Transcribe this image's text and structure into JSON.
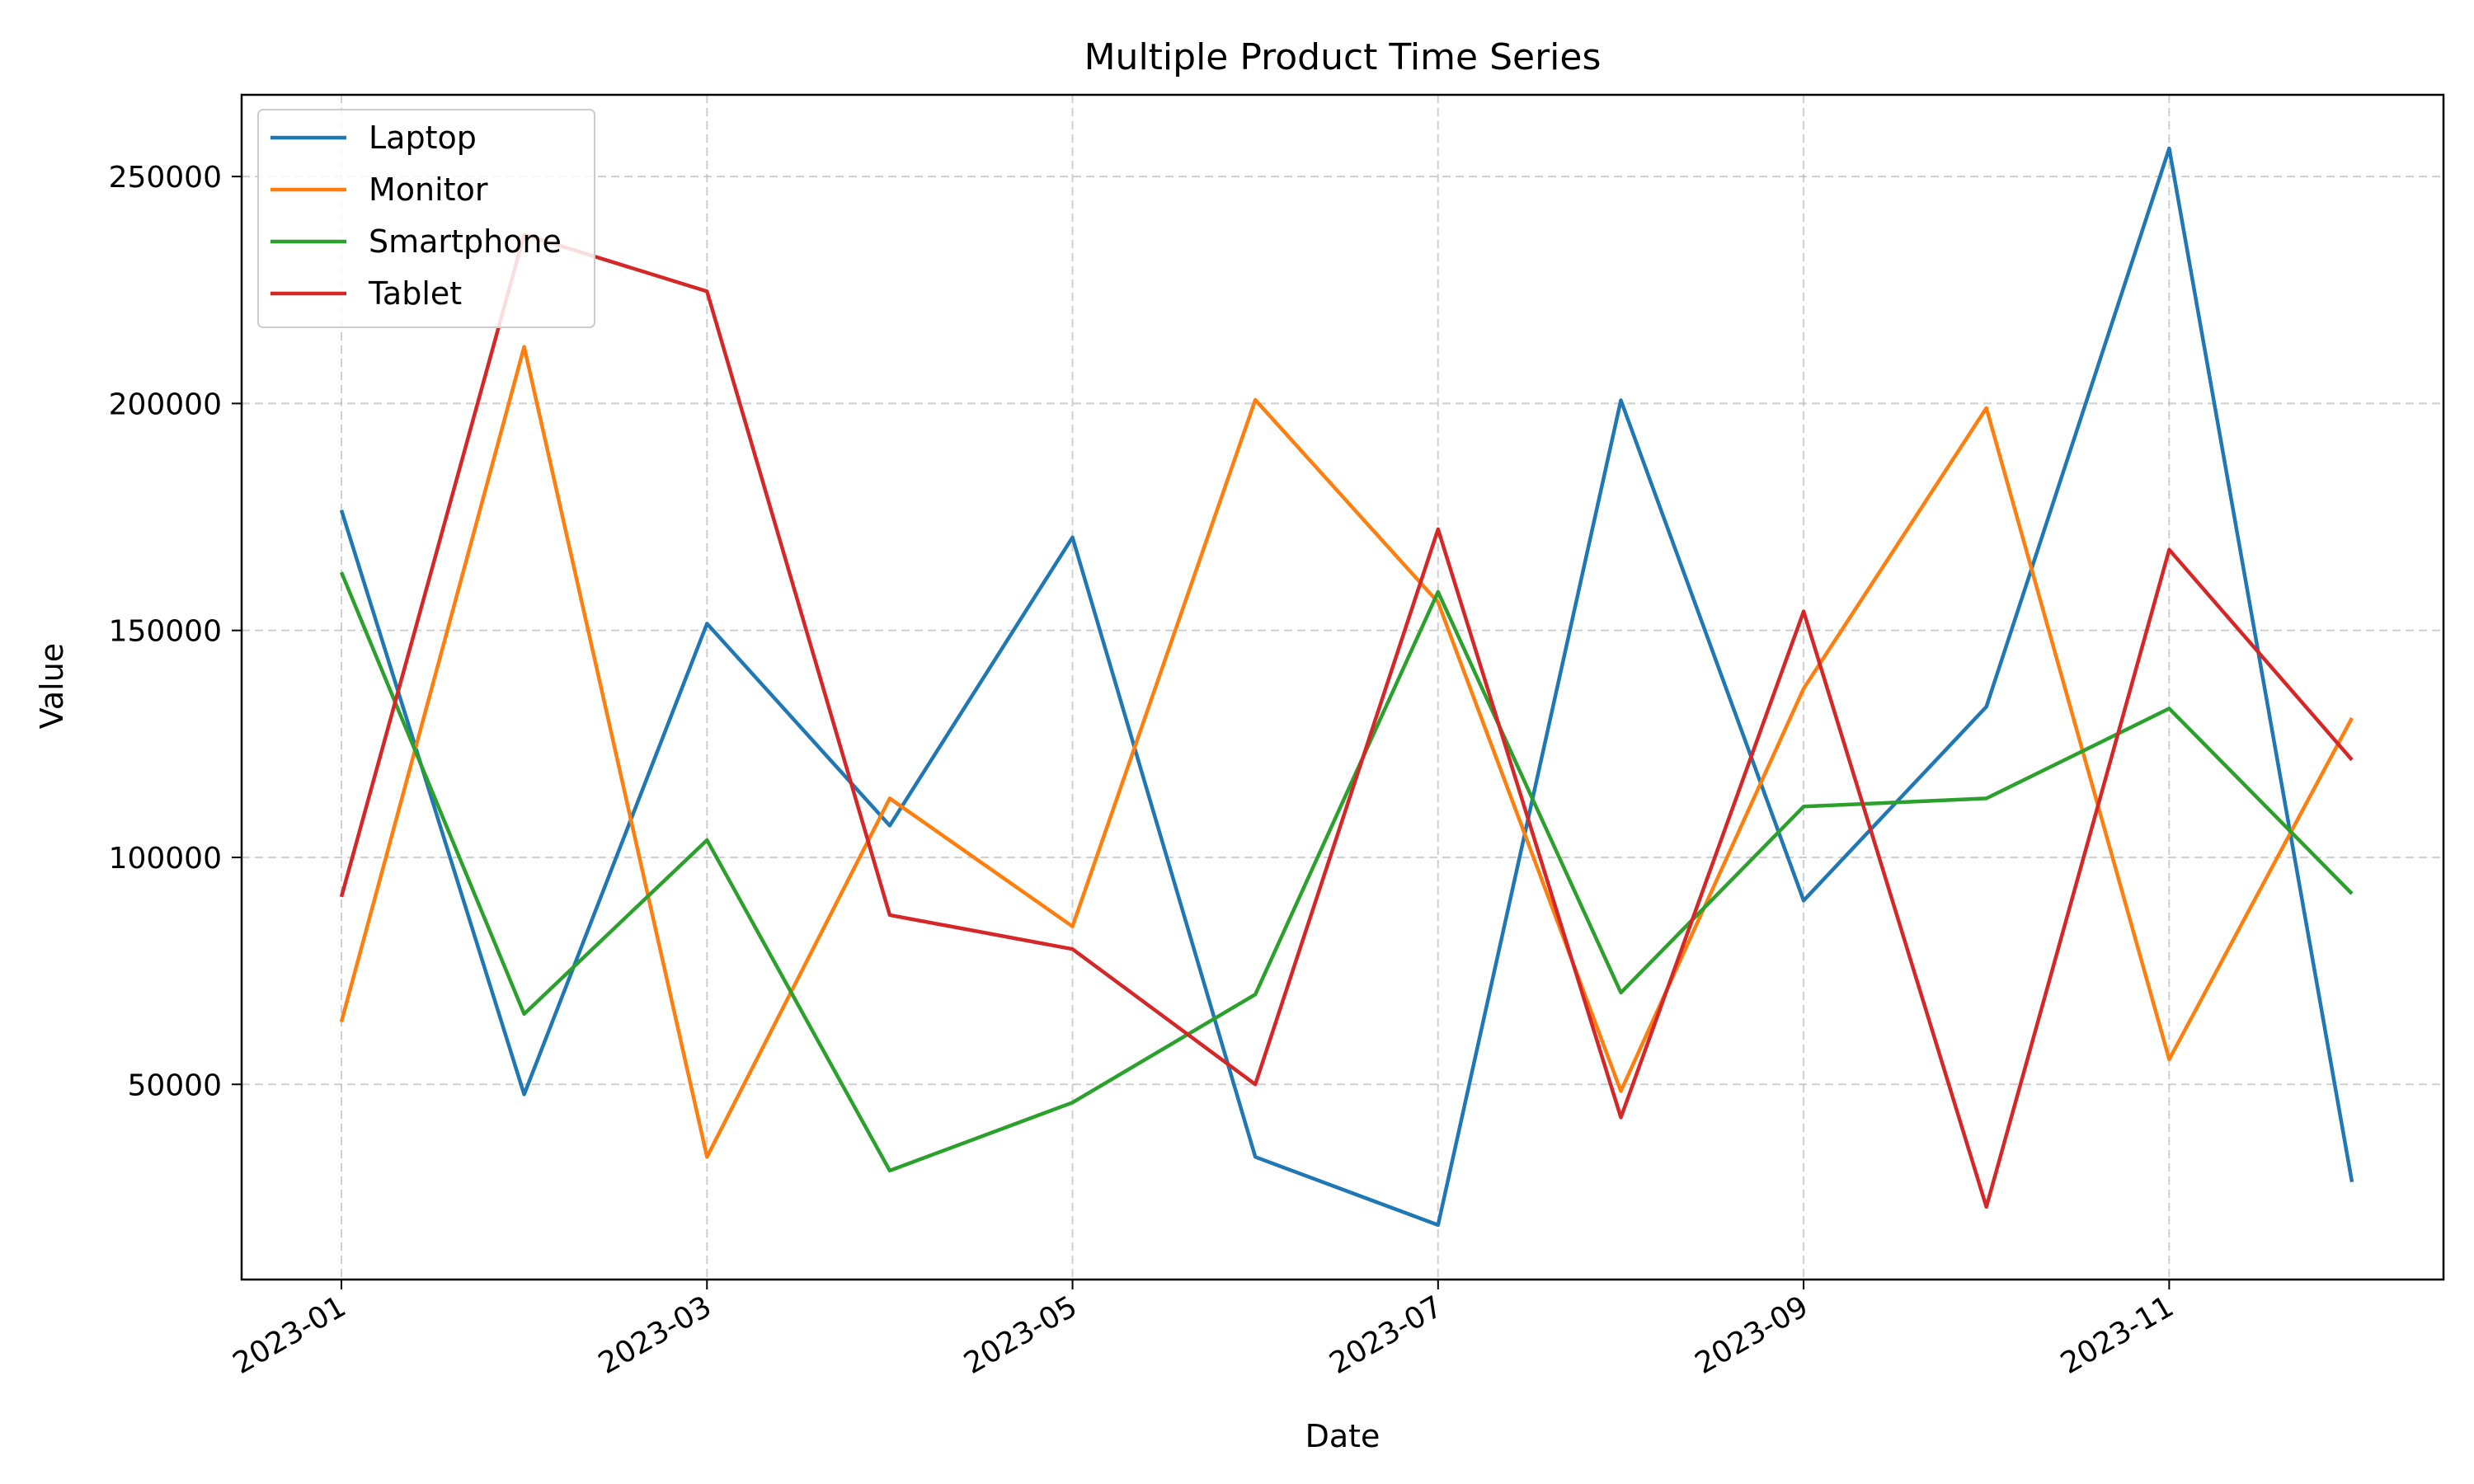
{
  "chart_data": {
    "type": "line",
    "title": "Multiple Product Time Series",
    "xlabel": "Date",
    "ylabel": "Value",
    "x": [
      "2023-01",
      "2023-02",
      "2023-03",
      "2023-04",
      "2023-05",
      "2023-06",
      "2023-07",
      "2023-08",
      "2023-09",
      "2023-10",
      "2023-11",
      "2023-12"
    ],
    "x_tick_labels": [
      "2023-01",
      "2023-03",
      "2023-05",
      "2023-07",
      "2023-09",
      "2023-11"
    ],
    "y_ticks": [
      50000,
      100000,
      150000,
      200000,
      250000
    ],
    "ylim": [
      7000,
      268000
    ],
    "grid": true,
    "legend_position": "top-left",
    "series": [
      {
        "name": "Laptop",
        "color": "#1f77b4",
        "values": [
          176500,
          47800,
          151500,
          107000,
          170500,
          34000,
          19000,
          200700,
          90500,
          133200,
          256200,
          28500
        ]
      },
      {
        "name": "Monitor",
        "color": "#ff7f0e",
        "values": [
          63800,
          212500,
          34000,
          113000,
          84800,
          200800,
          156200,
          48500,
          137200,
          199000,
          55500,
          130700
        ]
      },
      {
        "name": "Smartphone",
        "color": "#2ca02c",
        "values": [
          162800,
          65500,
          103800,
          31000,
          46000,
          69800,
          158500,
          70200,
          111200,
          113000,
          132800,
          92000
        ]
      },
      {
        "name": "Tablet",
        "color": "#d62728",
        "values": [
          91300,
          237200,
          224700,
          87300,
          79800,
          50000,
          172300,
          42700,
          154200,
          23000,
          167800,
          121500
        ]
      }
    ]
  }
}
